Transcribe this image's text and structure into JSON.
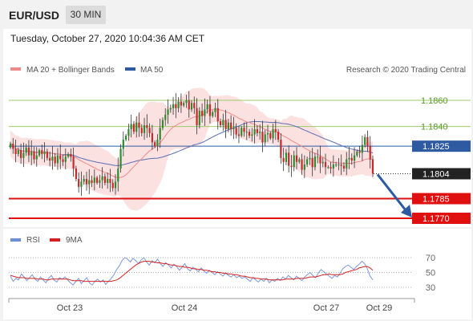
{
  "header": {
    "instrument": "EUR/USD",
    "timeframe": "30 MIN",
    "timestamp": "Tuesday, October 27, 2020 10:04:36 AM CET",
    "copyright": "Research © 2020 Trading Central"
  },
  "chart_data": {
    "type": "candlestick",
    "legend": [
      "MA 20 + Bollinger Bands",
      "MA 50"
    ],
    "colors": {
      "up": "#2e8b2e",
      "down": "#c42a2a",
      "ma20": "#f08a8a",
      "band": "#fbdcdc",
      "ma50": "#5b6fb5",
      "resistance": "#9ccc6a",
      "pivot": "#2d5aa0",
      "support": "#e01010",
      "current": "#222222"
    },
    "ylim": [
      1.1752,
      1.1875
    ],
    "x_ticks": [
      "Oct 23",
      "Oct 24",
      "Oct 27",
      "Oct 29"
    ],
    "levels": [
      {
        "value": 1.186,
        "label": "1.1860",
        "kind": "resistance"
      },
      {
        "value": 1.184,
        "label": "1.1840",
        "kind": "resistance"
      },
      {
        "value": 1.1825,
        "label": "1.1825",
        "kind": "pivot"
      },
      {
        "value": 1.1804,
        "label": "1.1804",
        "kind": "current"
      },
      {
        "value": 1.1785,
        "label": "1.1785",
        "kind": "support"
      },
      {
        "value": 1.177,
        "label": "1.1770",
        "kind": "support"
      }
    ],
    "forecast_arrow": {
      "from": 1.1804,
      "to": 1.177
    },
    "closes": [
      1.1827,
      1.1823,
      1.1819,
      1.1822,
      1.1816,
      1.182,
      1.1824,
      1.1818,
      1.1821,
      1.1815,
      1.1818,
      1.1822,
      1.1819,
      1.1821,
      1.1816,
      1.1814,
      1.1817,
      1.1812,
      1.1818,
      1.1815,
      1.1813,
      1.1817,
      1.1819,
      1.1817,
      1.1808,
      1.18,
      1.1794,
      1.1798,
      1.18,
      1.1796,
      1.1799,
      1.1797,
      1.1801,
      1.1797,
      1.1799,
      1.1802,
      1.1797,
      1.18,
      1.1797,
      1.1793,
      1.1798,
      1.1808,
      1.1823,
      1.183,
      1.1833,
      1.1838,
      1.1842,
      1.1836,
      1.1843,
      1.1839,
      1.1835,
      1.1841,
      1.1839,
      1.1835,
      1.1828,
      1.1825,
      1.183,
      1.1839,
      1.1845,
      1.1849,
      1.1853,
      1.1854,
      1.1857,
      1.1854,
      1.1859,
      1.1856,
      1.1858,
      1.186,
      1.1853,
      1.1858,
      1.1854,
      1.1841,
      1.1852,
      1.1848,
      1.1853,
      1.1857,
      1.1848,
      1.1851,
      1.1854,
      1.1844,
      1.1841,
      1.1845,
      1.1838,
      1.1843,
      1.1838,
      1.1839,
      1.1834,
      1.1833,
      1.1839,
      1.1836,
      1.1836,
      1.1833,
      1.1834,
      1.1838,
      1.1835,
      1.1836,
      1.1828,
      1.1834,
      1.1835,
      1.1831,
      1.1838,
      1.1836,
      1.183,
      1.1816,
      1.1813,
      1.182,
      1.181,
      1.1809,
      1.1818,
      1.1813,
      1.1815,
      1.1807,
      1.1811,
      1.1815,
      1.1816,
      1.1809,
      1.1817,
      1.1817,
      1.1812,
      1.1813,
      1.1809,
      1.1809,
      1.1808,
      1.1811,
      1.1811,
      1.1811,
      1.181,
      1.1808,
      1.1815,
      1.1816,
      1.1814,
      1.1818,
      1.1821,
      1.182,
      1.1826,
      1.1832,
      1.1825,
      1.1815,
      1.1804
    ],
    "rsi": {
      "legend": [
        "RSI",
        "9MA"
      ],
      "levels": [
        70,
        50,
        30
      ],
      "ylim": [
        20,
        80
      ],
      "rsi_values": [
        45,
        38,
        42,
        40,
        48,
        44,
        39,
        43,
        47,
        41,
        38,
        44,
        40,
        36,
        42,
        46,
        40,
        37,
        43,
        41,
        44,
        40,
        36,
        33,
        38,
        42,
        35,
        39,
        43,
        36,
        33,
        38,
        41,
        37,
        40,
        34,
        38,
        42,
        47,
        54,
        59,
        66,
        70,
        68,
        64,
        69,
        66,
        62,
        67,
        70,
        64,
        60,
        66,
        63,
        68,
        62,
        58,
        63,
        60,
        56,
        61,
        58,
        53,
        57,
        62,
        55,
        52,
        57,
        54,
        51,
        56,
        52,
        49,
        53,
        50,
        47,
        51,
        48,
        45,
        49,
        46,
        44,
        47,
        43,
        45,
        42,
        44,
        41,
        38,
        43,
        40,
        37,
        41,
        38,
        42,
        36,
        40,
        38,
        42,
        39,
        44,
        41,
        46,
        43,
        40,
        45,
        42,
        39,
        44,
        47,
        50,
        46,
        43,
        49,
        54,
        51,
        48,
        45,
        42,
        46,
        44,
        49,
        55,
        58,
        60,
        57,
        54,
        58,
        61,
        65,
        62,
        55,
        45,
        40
      ],
      "ma_values": [
        46,
        45,
        44,
        43,
        43,
        43,
        42,
        42,
        42,
        42,
        41,
        41,
        41,
        40,
        40,
        41,
        41,
        41,
        41,
        41,
        41,
        41,
        40,
        39,
        39,
        39,
        39,
        38,
        38,
        38,
        38,
        38,
        38,
        38,
        38,
        38,
        38,
        38,
        39,
        40,
        42,
        45,
        48,
        51,
        54,
        57,
        60,
        62,
        64,
        65,
        65,
        65,
        64,
        64,
        63,
        63,
        62,
        62,
        61,
        60,
        60,
        59,
        58,
        58,
        57,
        57,
        56,
        55,
        55,
        54,
        54,
        53,
        53,
        52,
        51,
        51,
        50,
        50,
        49,
        49,
        48,
        48,
        47,
        47,
        46,
        45,
        45,
        44,
        43,
        43,
        42,
        42,
        41,
        41,
        41,
        40,
        40,
        40,
        40,
        40,
        40,
        41,
        41,
        41,
        41,
        42,
        42,
        42,
        42,
        43,
        44,
        44,
        44,
        45,
        46,
        47,
        47,
        48,
        47,
        47,
        47,
        47,
        48,
        50,
        51,
        52,
        53,
        54,
        56,
        57,
        58,
        58,
        56,
        53
      ]
    }
  }
}
